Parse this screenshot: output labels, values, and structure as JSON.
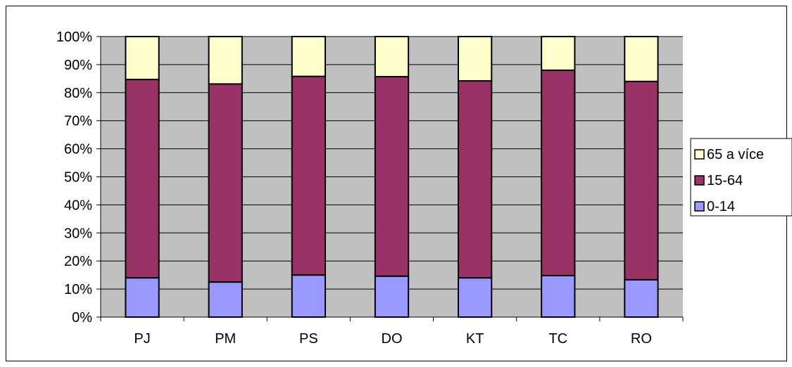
{
  "chart_data": {
    "type": "bar",
    "stacked": true,
    "percent_stacked": true,
    "title": "",
    "xlabel": "",
    "ylabel": "",
    "categories": [
      "PJ",
      "PM",
      "PS",
      "DO",
      "KT",
      "TC",
      "RO"
    ],
    "series": [
      {
        "name": "0-14",
        "color": "#9999ff",
        "values": [
          14.0,
          12.5,
          15.0,
          14.6,
          14.0,
          14.8,
          13.3
        ]
      },
      {
        "name": "15-64",
        "color": "#993366",
        "values": [
          70.7,
          70.6,
          70.8,
          71.1,
          70.2,
          73.2,
          70.7
        ]
      },
      {
        "name": "65 a více",
        "color": "#ffffcc",
        "values": [
          15.3,
          16.9,
          14.2,
          14.3,
          15.8,
          12.0,
          16.0
        ]
      }
    ],
    "ylim": [
      0,
      100
    ],
    "yticks": [
      "0%",
      "10%",
      "20%",
      "30%",
      "40%",
      "50%",
      "60%",
      "70%",
      "80%",
      "90%",
      "100%"
    ],
    "grid": true,
    "plot_background": "#c0c0c0",
    "legend_position": "right",
    "legend_order": [
      "65 a více",
      "15-64",
      "0-14"
    ]
  }
}
